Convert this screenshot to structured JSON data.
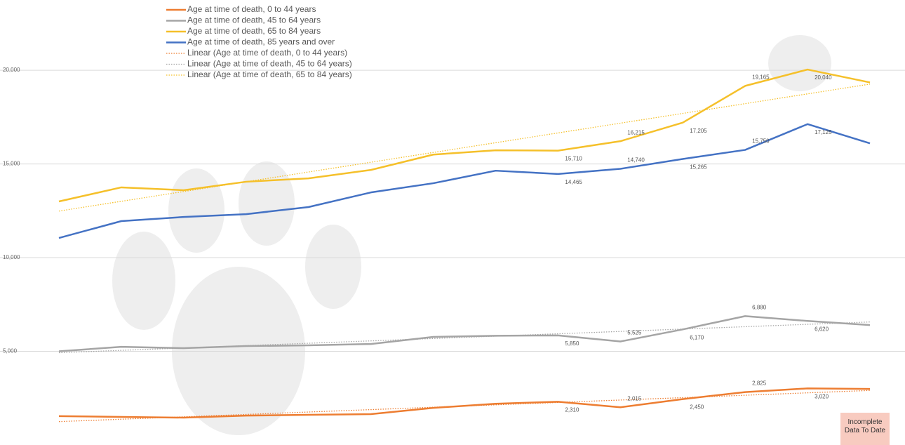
{
  "chart_data": {
    "type": "line",
    "categories": [
      null,
      null,
      null,
      null,
      null,
      null,
      null,
      null,
      null,
      null,
      null,
      null,
      null,
      null
    ],
    "ylim": [
      0,
      23750
    ],
    "yticks": [
      {
        "value": 5000,
        "label": "5,000"
      },
      {
        "value": 10000,
        "label": "10,000"
      },
      {
        "value": 15000,
        "label": "15,000"
      },
      {
        "value": 20000,
        "label": "20,000"
      }
    ],
    "grid": true,
    "legend": "top-left",
    "series": [
      {
        "name": "Age at time of death, 0 to 44 years",
        "color": "#ed7d31",
        "values": [
          1540,
          1500,
          1460,
          1570,
          1610,
          1650,
          1980,
          2200,
          2310,
          2015,
          2450,
          2825,
          3020,
          2990
        ],
        "value_labels": [
          null,
          null,
          null,
          null,
          null,
          null,
          null,
          null,
          "2,310",
          "2,015",
          "2,450",
          "2,825",
          "3,020",
          null
        ]
      },
      {
        "name": "Age at time of death, 45 to 64 years",
        "color": "#a5a5a5",
        "values": [
          5000,
          5240,
          5170,
          5280,
          5320,
          5390,
          5770,
          5830,
          5850,
          5525,
          6170,
          6880,
          6620,
          6400
        ],
        "value_labels": [
          null,
          null,
          null,
          null,
          null,
          null,
          null,
          null,
          "5,850",
          "5,525",
          "6,170",
          "6,880",
          "6,620",
          null
        ]
      },
      {
        "name": "Age at time of death, 65 to 84 years",
        "color": "#f5c02a",
        "values": [
          13000,
          13750,
          13600,
          14050,
          14230,
          14680,
          15500,
          15730,
          15710,
          16215,
          17205,
          19165,
          20040,
          19350
        ],
        "value_labels": [
          null,
          null,
          null,
          null,
          null,
          null,
          null,
          null,
          "15,710",
          "16,215",
          "17,205",
          "19,165",
          "20,040",
          null
        ]
      },
      {
        "name": "Age at time of death, 85 years and over",
        "color": "#4472c4",
        "values": [
          11050,
          11950,
          12170,
          12320,
          12700,
          13480,
          13970,
          14640,
          14465,
          14740,
          15265,
          15750,
          17125,
          16100
        ],
        "value_labels": [
          null,
          null,
          null,
          null,
          null,
          null,
          null,
          null,
          "14,465",
          "14,740",
          "15,265",
          "15,750",
          "17,125",
          null
        ]
      }
    ],
    "trendlines": [
      {
        "name": "Linear (Age at time of death, 0 to 44 years)",
        "series": 0
      },
      {
        "name": "Linear (Age at time of death, 45 to 64 years)",
        "series": 1
      },
      {
        "name": "Linear (Age at time of death, 65 to 84 years)",
        "series": 2
      }
    ],
    "annotation": "Incomplete Data To Date"
  }
}
